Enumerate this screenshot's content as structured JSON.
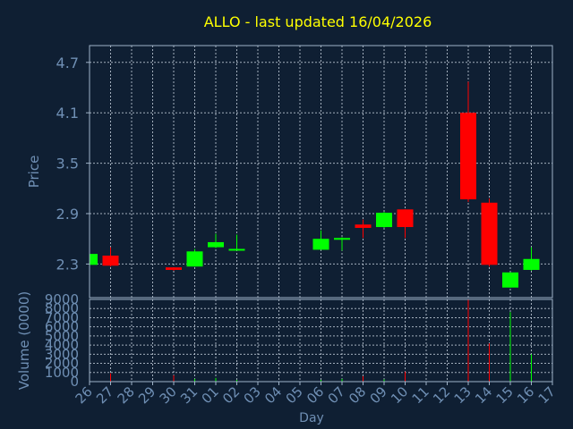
{
  "colors": {
    "background": "#0f1f33",
    "title": "#ffff00",
    "axis_text": "#6f8fb4",
    "frame": "#9fb3c8",
    "grid": "#c8d4e0",
    "up": "#00ff00",
    "down": "#ff0000"
  },
  "chart_data": [
    {
      "type": "candlestick",
      "title": "ALLO - last updated 16/04/2026",
      "ylabel": "Price",
      "ylim": [
        1.9,
        4.9
      ],
      "yticks": [
        "2.3",
        "2.9",
        "3.5",
        "4.1",
        "4.7"
      ],
      "grid": true,
      "candles": [
        {
          "x": "26",
          "open": 2.29,
          "close": 2.42,
          "high": 2.42,
          "low": 2.29
        },
        {
          "x": "27",
          "open": 2.4,
          "close": 2.28,
          "high": 2.5,
          "low": 2.27
        },
        {
          "x": "30",
          "open": 2.26,
          "close": 2.23,
          "high": 2.26,
          "low": 2.22
        },
        {
          "x": "31",
          "open": 2.27,
          "close": 2.45,
          "high": 2.48,
          "low": 2.27
        },
        {
          "x": "01",
          "open": 2.5,
          "close": 2.56,
          "high": 2.66,
          "low": 2.49
        },
        {
          "x": "02",
          "open": 2.47,
          "close": 2.48,
          "high": 2.65,
          "low": 2.47
        },
        {
          "x": "06",
          "open": 2.47,
          "close": 2.6,
          "high": 2.7,
          "low": 2.47
        },
        {
          "x": "07",
          "open": 2.59,
          "close": 2.61,
          "high": 2.62,
          "low": 2.46
        },
        {
          "x": "08",
          "open": 2.77,
          "close": 2.73,
          "high": 2.83,
          "low": 2.61
        },
        {
          "x": "09",
          "open": 2.74,
          "close": 2.91,
          "high": 2.92,
          "low": 2.73
        },
        {
          "x": "10",
          "open": 2.95,
          "close": 2.74,
          "high": 2.95,
          "low": 2.61
        },
        {
          "x": "13",
          "open": 4.1,
          "close": 3.07,
          "high": 4.47,
          "low": 3.04
        },
        {
          "x": "14",
          "open": 3.03,
          "close": 2.29,
          "high": 3.08,
          "low": 2.27
        },
        {
          "x": "15",
          "open": 2.02,
          "close": 2.2,
          "high": 2.2,
          "low": 2.02
        },
        {
          "x": "16",
          "open": 2.23,
          "close": 2.36,
          "high": 2.5,
          "low": 2.22
        }
      ]
    },
    {
      "type": "bar",
      "ylabel": "Volume (0000)",
      "xlabel": "Day",
      "ylim": [
        0,
        9000
      ],
      "yticks": [
        "0",
        "1000",
        "2000",
        "3000",
        "4000",
        "5000",
        "6000",
        "7000",
        "8000",
        "9000"
      ],
      "categories": [
        "26",
        "27",
        "28",
        "29",
        "30",
        "31",
        "01",
        "02",
        "03",
        "04",
        "05",
        "06",
        "07",
        "08",
        "09",
        "10",
        "11",
        "12",
        "13",
        "14",
        "15",
        "16",
        "17"
      ],
      "bars": [
        {
          "x": "26",
          "value": 60,
          "direction": "up"
        },
        {
          "x": "27",
          "value": 900,
          "direction": "down"
        },
        {
          "x": "30",
          "value": 700,
          "direction": "down"
        },
        {
          "x": "31",
          "value": 300,
          "direction": "up"
        },
        {
          "x": "01",
          "value": 400,
          "direction": "up"
        },
        {
          "x": "02",
          "value": 200,
          "direction": "up"
        },
        {
          "x": "06",
          "value": 200,
          "direction": "up"
        },
        {
          "x": "07",
          "value": 300,
          "direction": "up"
        },
        {
          "x": "08",
          "value": 600,
          "direction": "down"
        },
        {
          "x": "09",
          "value": 250,
          "direction": "up"
        },
        {
          "x": "10",
          "value": 1100,
          "direction": "down"
        },
        {
          "x": "13",
          "value": 9000,
          "direction": "down"
        },
        {
          "x": "14",
          "value": 4200,
          "direction": "down"
        },
        {
          "x": "15",
          "value": 7600,
          "direction": "up"
        },
        {
          "x": "16",
          "value": 3000,
          "direction": "up"
        }
      ]
    }
  ]
}
